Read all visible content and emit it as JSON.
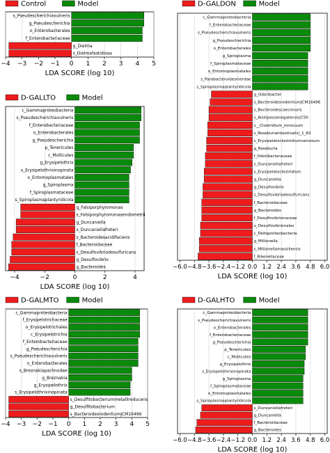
{
  "colors": {
    "pos": "#0a8a0a",
    "neg": "#ee1c1c",
    "grid": "#cfcfcf",
    "axis": "#000000"
  },
  "chart_data": [
    {
      "type": "bar",
      "legend": [
        "Control",
        "Model"
      ],
      "xlabel": "LDA SCORE (log 10)",
      "xlim": [
        -4,
        5
      ],
      "ticks": [
        -4,
        -3,
        -2,
        -1,
        0,
        1,
        2,
        3,
        4,
        5
      ],
      "tick_labels": [
        "−4",
        "−3",
        "−2",
        "−1",
        "0",
        "1",
        "2",
        "3",
        "4",
        "5"
      ],
      "categories": [
        "s_Pseudescherichiavulneris",
        "g_Pseudescherichia",
        "o_Enterobacterales",
        "f_Enterobacteriaceae",
        "g_Dielma",
        "s_Dielmafastidiosa"
      ],
      "values": [
        4.4,
        4.4,
        4.3,
        4.3,
        -3.8,
        -3.8
      ]
    },
    {
      "type": "bar",
      "legend": [
        "D-GALLTO",
        "Model"
      ],
      "xlabel": "LDA SCORE (log 10)",
      "xlim": [
        -4.6,
        4.6
      ],
      "ticks": [
        -4,
        -2,
        0,
        2,
        4
      ],
      "tick_labels": [
        "−4",
        "−2",
        "0",
        "2",
        "4"
      ],
      "categories": [
        "c_Gammaproteobacteria",
        "s_Pseudescherichiavulneris",
        "f_Enterobacteriaceae",
        "o_Enterobacterales",
        "g_Pseudescherichia",
        "p_Tenericutes",
        "c_Mollicutes",
        "g_Erysipelothrix",
        "s_Erysipelothrixinopinata",
        "o_Entomoplasmatales",
        "g_Spiroplasma",
        "f_Spiroplasmataceae",
        "s_Spiroplasmaplantyridicola",
        "g_Falsiporphyromonas",
        "s_Falsiporphyromonasendometrii",
        "g_Duncaniella",
        "s_Duncaniellafreteri",
        "s_Bacteroidesacidifaciens",
        "f_Bacteroidaceae",
        "s_Desulfovibriodesulfuricans",
        "g_Desulfovibrio",
        "g_Bacteroides"
      ],
      "values": [
        4.4,
        4.4,
        4.3,
        4.3,
        4.3,
        3.9,
        3.9,
        3.8,
        3.7,
        3.6,
        3.6,
        3.6,
        3.6,
        -3.6,
        -3.6,
        -3.9,
        -3.9,
        -4.1,
        -4.2,
        -4.2,
        -4.3,
        -4.4
      ]
    },
    {
      "type": "bar",
      "legend": [
        "D-GALDON",
        "Model"
      ],
      "xlabel": "LDA SCORE (log 10)",
      "xlim": [
        -6.2,
        6.2
      ],
      "ticks": [
        -6.0,
        -4.8,
        -3.6,
        -2.4,
        -1.2,
        0.0,
        1.2,
        2.4,
        3.6,
        4.8,
        6.0
      ],
      "tick_labels": [
        "−6.0",
        "−4.8",
        "−3.6",
        "−2.4",
        "−1.2",
        "0.0",
        "1.2",
        "2.4",
        "3.6",
        "4.8",
        "6.0"
      ],
      "categories": [
        "c_Gammaproteobacteria",
        "f_Enterobacteriaceae",
        "s_Pseudescherichiavulneris",
        "g_Pseudescherichia",
        "o_Enterobacterales",
        "g_Spiroplasma",
        "f_Spiroplasmataceae",
        "o_Entomoplasmatales",
        "s_Parabacteroidesmerdae",
        "s_Spiroplasmaplantyridicola",
        "g_Odoribacter",
        "s_BacteroidesrodentiumJCM16496",
        "s_Bacteroidescaecimuris",
        "s_Alistipessenegalensis|C50",
        "s__Clostridium_innocuum",
        "s_Roseburiaintestinalis|_1_82",
        "s_Erysipelatoclostridiumramosum",
        "g_Roseburia",
        "f_Odoribacteraceae",
        "s_Duncaniellafreteri",
        "s_Erysipelatoclostridium",
        "g_Duncaniella",
        "g_Desulfovibrio",
        "s_Desulfovibriodesulfuricans",
        "f_Bacteroidaceae",
        "g_Bacteroides",
        "f_Desulfovibrionaceae",
        "o_Desulfovibrionales",
        "c_Deltaproteobacteria",
        "g_Millionella",
        "s_Millionellamassiliensis",
        "f_Rikenellaceae"
      ],
      "values": [
        4.8,
        4.8,
        4.8,
        4.8,
        4.8,
        4.6,
        4.6,
        4.6,
        4.6,
        4.6,
        -3.4,
        -3.5,
        -3.6,
        -3.6,
        -3.7,
        -3.7,
        -3.8,
        -3.8,
        -3.9,
        -3.9,
        -4.0,
        -4.0,
        -4.1,
        -4.1,
        -4.2,
        -4.2,
        -4.2,
        -4.3,
        -4.3,
        -4.4,
        -4.4,
        -4.5
      ]
    },
    {
      "type": "bar",
      "legend": [
        "D-GALMTO",
        "Model"
      ],
      "xlabel": "LDA SCORE (log 10)",
      "xlim": [
        -4,
        5
      ],
      "ticks": [
        -4,
        -3,
        -2,
        -1,
        0,
        1,
        2,
        3,
        4,
        5
      ],
      "tick_labels": [
        "−4",
        "−3",
        "−2",
        "−1",
        "0",
        "1",
        "2",
        "3",
        "4",
        "5"
      ],
      "categories": [
        "c_Gammaproteobacteria",
        "f_Erysipelotrichaceae",
        "o_Erysipelotrichales",
        "c_Erysipelotrichia",
        "f_Enterobacteriaceae",
        "g_Pseudescherichia",
        "s_Pseudescherichiavulneris",
        "o_Enterobacterales",
        "s_Breznakiapachnodae",
        "g_Breznakia",
        "g_Erysipelothrix",
        "s_Erysipelothrixinopinata",
        "s_Desulfitobacteriummetallireducens",
        "g_Desulfitobacterium",
        "s_BacteroidesrodentiumJCM16496"
      ],
      "values": [
        4.5,
        4.5,
        4.5,
        4.5,
        4.4,
        4.4,
        4.4,
        4.4,
        4.0,
        4.0,
        3.9,
        3.9,
        -3.8,
        -3.8,
        -3.8
      ]
    },
    {
      "type": "bar",
      "legend": [
        "D-GALHTO",
        "Model"
      ],
      "xlabel": "LDA SCORE (log 10)",
      "xlim": [
        -6.2,
        6.2
      ],
      "ticks": [
        -6.0,
        -4.8,
        -3.6,
        -2.4,
        -1.2,
        0.0,
        1.2,
        2.4,
        3.6,
        4.8,
        6.0
      ],
      "tick_labels": [
        "−6.0",
        "−4.8",
        "−3.6",
        "−2.4",
        "−1.2",
        "0.0",
        "1.2",
        "2.4",
        "3.6",
        "4.8",
        "6.0"
      ],
      "categories": [
        "c_Gammaproteobacteria",
        "s_Pseudescherichiavulneris",
        "o_Enterobacterales",
        "f_Enterobacteriaceae",
        "g_Pseudescherichia",
        "p_Tenericutes",
        "c_Mollicutes",
        "g_Erysipelothrix",
        "s_Erysipelothrixinopinata",
        "g_Spiroplasma",
        "f_Spiroplasmataceae",
        "o_Entomoplasmatales",
        "s_Spiroplasmaplantyridicola",
        "s_Duncaniellafreteri",
        "g_Duncaniella",
        "f_Bacteroidaceae",
        "g_Bacteroides"
      ],
      "values": [
        4.6,
        4.6,
        4.6,
        4.6,
        4.6,
        4.4,
        4.4,
        4.3,
        4.3,
        4.2,
        4.2,
        4.2,
        4.2,
        -4.2,
        -4.3,
        -4.6,
        -4.7
      ]
    }
  ]
}
